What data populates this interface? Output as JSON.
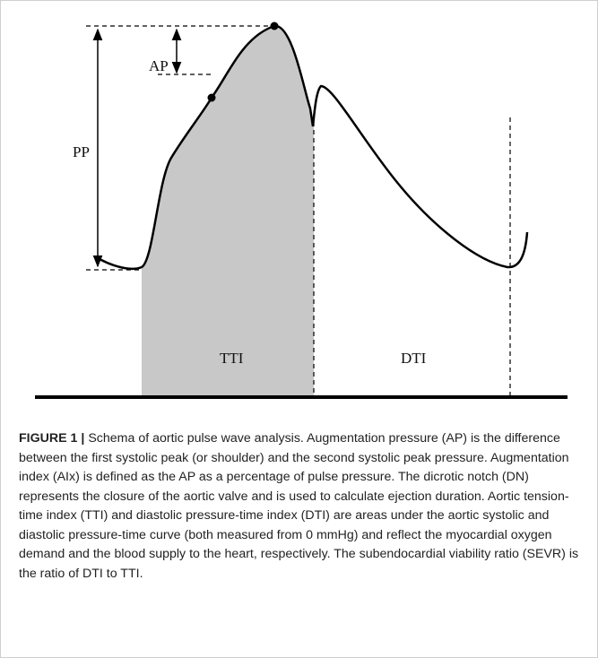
{
  "labels": {
    "ap": "AP",
    "pp": "PP",
    "tti": "TTI",
    "dti": "DTI"
  },
  "caption": {
    "label": "FIGURE 1 |",
    "text": "Schema of aortic pulse wave analysis. Augmentation pressure (AP) is the difference between the first systolic peak (or shoulder) and the second systolic peak pressure. Augmentation index (AIx) is defined as the AP as a percentage of pulse pressure. The dicrotic notch (DN) represents the closure of the aortic valve and is used to calculate ejection duration. Aortic tension-time index (TTI) and diastolic pressure-time index (DTI) are areas under the aortic systolic and diastolic pressure-time curve (both measured from 0 mmHg) and reflect the myocardial oxygen demand and the blood supply to the heart, respectively. The subendocardial viability ratio (SEVR) is the ratio of DTI to TTI."
  }
}
